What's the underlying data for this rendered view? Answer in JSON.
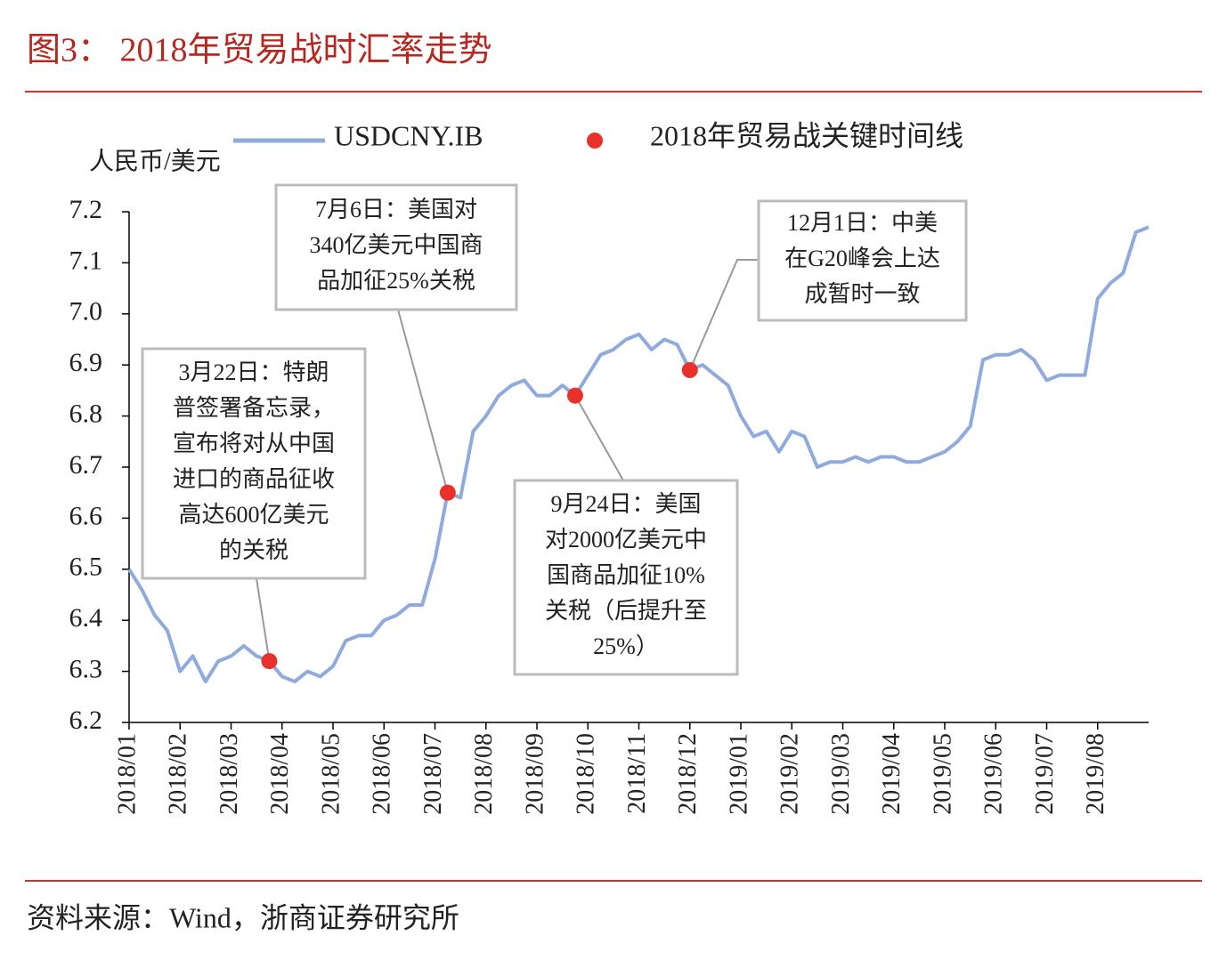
{
  "title": "图3： 2018年贸易战时汇率走势",
  "source": "资料来源：Wind，浙商证券研究所",
  "chart_data": {
    "type": "line",
    "y_label": "人民币/美元",
    "categories": [
      "2018/01",
      null,
      null,
      null,
      "2018/02",
      null,
      null,
      null,
      "2018/03",
      null,
      null,
      null,
      "2018/04",
      null,
      null,
      null,
      "2018/05",
      null,
      null,
      null,
      "2018/06",
      null,
      null,
      null,
      "2018/07",
      null,
      null,
      null,
      "2018/08",
      null,
      null,
      null,
      "2018/09",
      null,
      null,
      null,
      "2018/10",
      null,
      null,
      null,
      "2018/11",
      null,
      null,
      null,
      "2018/12",
      null,
      null,
      null,
      "2019/01",
      null,
      null,
      null,
      "2019/02",
      null,
      null,
      null,
      "2019/03",
      null,
      null,
      null,
      "2019/04",
      null,
      null,
      null,
      "2019/05",
      null,
      null,
      null,
      "2019/06",
      null,
      null,
      null,
      "2019/07",
      null,
      null,
      null,
      "2019/08",
      null,
      null,
      null,
      null
    ],
    "series": [
      {
        "name": "USDCNY.IB",
        "color": "#8faadc",
        "style": "line",
        "values": [
          6.5,
          6.46,
          6.41,
          6.38,
          6.3,
          6.33,
          6.28,
          6.32,
          6.33,
          6.35,
          6.33,
          6.32,
          6.29,
          6.28,
          6.3,
          6.29,
          6.31,
          6.36,
          6.37,
          6.37,
          6.4,
          6.41,
          6.43,
          6.43,
          6.52,
          6.65,
          6.64,
          6.77,
          6.8,
          6.84,
          6.86,
          6.87,
          6.84,
          6.84,
          6.86,
          6.84,
          6.88,
          6.92,
          6.93,
          6.95,
          6.96,
          6.93,
          6.95,
          6.94,
          6.89,
          6.9,
          6.88,
          6.86,
          6.8,
          6.76,
          6.77,
          6.73,
          6.77,
          6.76,
          6.7,
          6.71,
          6.71,
          6.72,
          6.71,
          6.72,
          6.72,
          6.71,
          6.71,
          6.72,
          6.73,
          6.75,
          6.78,
          6.91,
          6.92,
          6.92,
          6.93,
          6.91,
          6.87,
          6.88,
          6.88,
          6.88,
          7.03,
          7.06,
          7.08,
          7.16,
          7.17
        ]
      },
      {
        "name": "2018年贸易战关键时间线",
        "color": "#e8312a",
        "style": "markers",
        "values": [
          null,
          null,
          null,
          null,
          null,
          null,
          null,
          null,
          null,
          null,
          null,
          6.32,
          null,
          null,
          null,
          null,
          null,
          null,
          null,
          null,
          null,
          null,
          null,
          null,
          null,
          6.65,
          null,
          null,
          null,
          null,
          null,
          null,
          null,
          null,
          null,
          6.84,
          null,
          null,
          null,
          null,
          null,
          null,
          null,
          null,
          6.89,
          null,
          null,
          null,
          null,
          null,
          null,
          null,
          null,
          null,
          null,
          null,
          null,
          null,
          null,
          null,
          null,
          null,
          null,
          null,
          null,
          null,
          null,
          null,
          null,
          null,
          null,
          null,
          null,
          null,
          null,
          null,
          null,
          null,
          null,
          null,
          null
        ]
      }
    ],
    "ylim": [
      6.2,
      7.2
    ],
    "yticks": [
      6.2,
      6.3,
      6.4,
      6.5,
      6.6,
      6.7,
      6.8,
      6.9,
      {
        "value": 7,
        "label": "7.0"
      },
      7.1,
      7.2
    ],
    "grid": false,
    "annotations": [
      {
        "lines": [
          "3月22日：特朗",
          "普签署备忘录，",
          "宣布将对从中国",
          "进口的商品征收",
          "高达600亿美元",
          "的关税"
        ]
      },
      {
        "lines": [
          "7月6日：美国对",
          "340亿美元中国商",
          "品加征25%关税"
        ]
      },
      {
        "lines": [
          "9月24日：美国",
          "对2000亿美元中",
          "国商品加征10%",
          "关税（后提升至",
          "25%）"
        ]
      },
      {
        "lines": [
          "12月1日：中美",
          "在G20峰会上达",
          "成暂时一致"
        ]
      }
    ]
  }
}
